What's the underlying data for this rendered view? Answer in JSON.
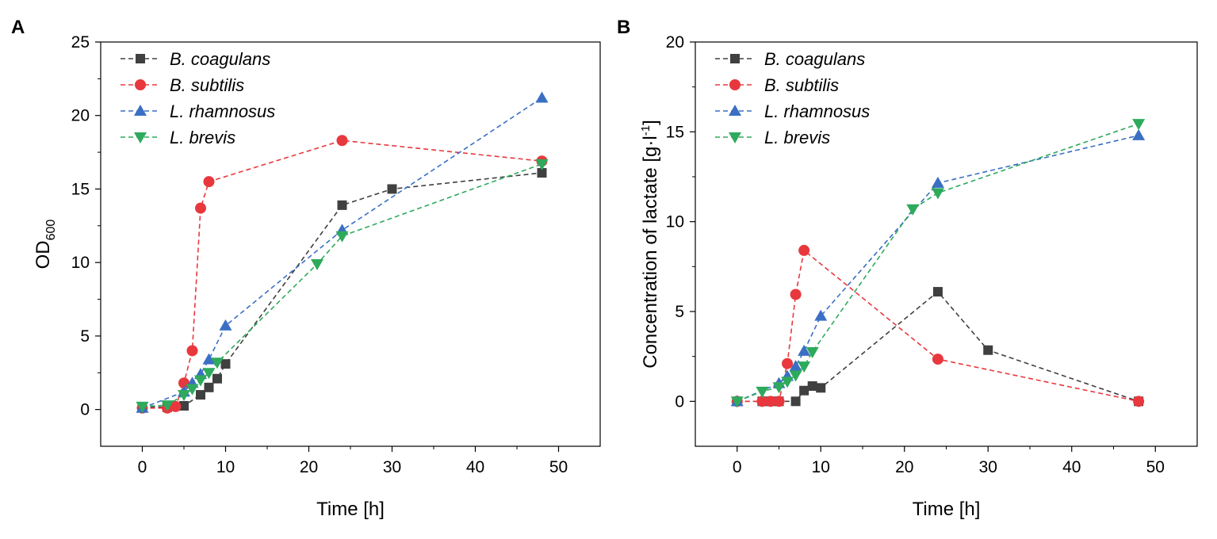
{
  "colors": {
    "B. coagulans": "#404040",
    "B. subtilis": "#e8383d",
    "L. rhamnosus": "#3a6fc4",
    "L. brevis": "#2eaa5c"
  },
  "chart_data": [
    {
      "type": "line",
      "panel": "A",
      "xlabel": "Time [h]",
      "ylabel": "OD",
      "ylabel_sub": "600",
      "xlim": [
        -5,
        55
      ],
      "ylim": [
        -2.5,
        25
      ],
      "xticks": [
        0,
        10,
        20,
        30,
        40,
        50
      ],
      "yticks": [
        0,
        5,
        10,
        15,
        20,
        25
      ],
      "legend": "top-left",
      "series": [
        {
          "name": "B. coagulans",
          "marker": "square",
          "x": [
            0,
            3,
            5,
            7,
            8,
            9,
            10,
            24,
            30,
            48
          ],
          "y": [
            0.2,
            0.15,
            0.25,
            1.0,
            1.5,
            2.1,
            3.1,
            13.9,
            15.0,
            16.1
          ]
        },
        {
          "name": "B. subtilis",
          "marker": "circle",
          "x": [
            0,
            3,
            4,
            5,
            6,
            7,
            8,
            24,
            48
          ],
          "y": [
            0.1,
            0.1,
            0.2,
            1.8,
            4.0,
            13.7,
            15.5,
            18.3,
            16.9
          ]
        },
        {
          "name": "L. rhamnosus",
          "marker": "triangle-up",
          "x": [
            0,
            5,
            6,
            7,
            8,
            10,
            24,
            48
          ],
          "y": [
            0.1,
            1.2,
            1.8,
            2.4,
            3.4,
            5.7,
            12.2,
            21.2
          ]
        },
        {
          "name": "L. brevis",
          "marker": "triangle-down",
          "x": [
            0,
            3,
            5,
            6,
            7,
            8,
            9,
            21,
            24,
            48
          ],
          "y": [
            0.2,
            0.3,
            1.0,
            1.4,
            2.0,
            2.5,
            3.2,
            9.9,
            11.8,
            16.7
          ]
        }
      ]
    },
    {
      "type": "line",
      "panel": "B",
      "xlabel": "Time [h]",
      "ylabel": "Concentration of lactate [g·l",
      "ylabel_sup": "-1",
      "ylabel_end": "]",
      "xlim": [
        -5,
        55
      ],
      "ylim": [
        -2.5,
        20
      ],
      "xticks": [
        0,
        10,
        20,
        30,
        40,
        50
      ],
      "yticks": [
        0,
        5,
        10,
        15,
        20
      ],
      "legend": "top-left",
      "series": [
        {
          "name": "B. coagulans",
          "marker": "square",
          "x": [
            0,
            3,
            4,
            5,
            7,
            8,
            9,
            10,
            24,
            30,
            48
          ],
          "y": [
            0,
            0,
            0,
            0,
            0,
            0.6,
            0.85,
            0.75,
            6.1,
            2.85,
            0
          ]
        },
        {
          "name": "B. subtilis",
          "marker": "circle",
          "x": [
            0,
            3,
            4,
            5,
            6,
            7,
            8,
            24,
            48
          ],
          "y": [
            0,
            0,
            0,
            0,
            2.1,
            5.95,
            8.4,
            2.35,
            0
          ]
        },
        {
          "name": "L. rhamnosus",
          "marker": "triangle-up",
          "x": [
            0,
            5,
            6,
            7,
            8,
            10,
            24,
            48
          ],
          "y": [
            0,
            1.0,
            1.4,
            1.95,
            2.8,
            4.75,
            12.15,
            14.8
          ]
        },
        {
          "name": "L. brevis",
          "marker": "triangle-down",
          "x": [
            0,
            3,
            5,
            6,
            7,
            8,
            9,
            21,
            24,
            48
          ],
          "y": [
            0,
            0.55,
            0.8,
            1.1,
            1.45,
            1.95,
            2.75,
            10.7,
            11.6,
            15.45
          ]
        }
      ]
    }
  ]
}
